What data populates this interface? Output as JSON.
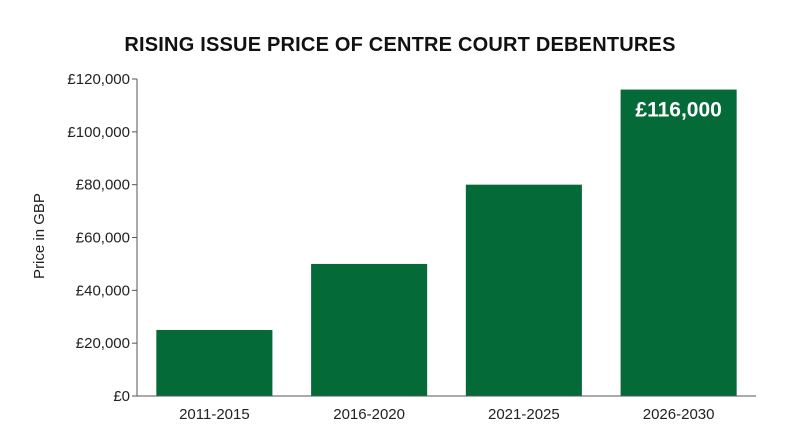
{
  "chart_data": {
    "type": "bar",
    "title": "RISING ISSUE PRICE OF CENTRE COURT DEBENTURES",
    "xlabel": "",
    "ylabel": "Price in GBP",
    "categories": [
      "2011-2015",
      "2016-2020",
      "2021-2025",
      "2026-2030"
    ],
    "values": [
      25000,
      50000,
      80000,
      116000
    ],
    "ylim": [
      0,
      120000
    ],
    "yticks": [
      0,
      20000,
      40000,
      60000,
      80000,
      100000,
      120000
    ],
    "ytick_labels": [
      "£0",
      "£20,000",
      "£40,000",
      "£60,000",
      "£80,000",
      "£100,000",
      "£120,000"
    ],
    "data_labels": [
      null,
      null,
      null,
      "£116,000"
    ],
    "bar_color": "#046a38",
    "grid": false,
    "legend": "none"
  }
}
